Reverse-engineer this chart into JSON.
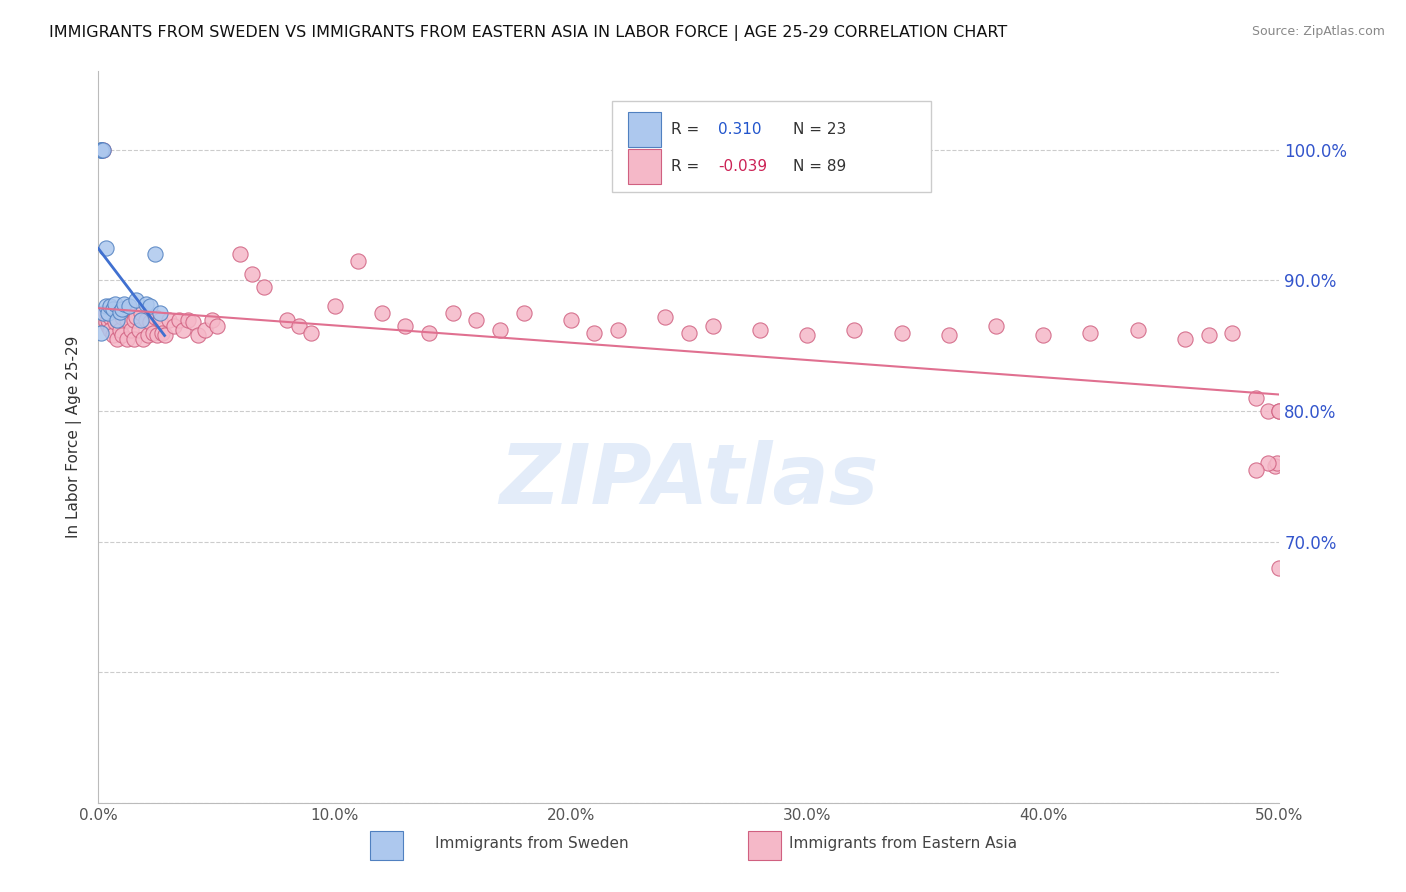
{
  "title": "IMMIGRANTS FROM SWEDEN VS IMMIGRANTS FROM EASTERN ASIA IN LABOR FORCE | AGE 25-29 CORRELATION CHART",
  "source": "Source: ZipAtlas.com",
  "ylabel": "In Labor Force | Age 25-29",
  "sweden_color": "#adc8ee",
  "eastern_asia_color": "#f5b8c8",
  "sweden_edge": "#5080c0",
  "eastern_asia_edge": "#d06080",
  "trend_blue": "#4070d0",
  "trend_pink": "#e07090",
  "legend_label_sweden": "Immigrants from Sweden",
  "legend_label_eastern_asia": "Immigrants from Eastern Asia",
  "watermark": "ZIPAtlas",
  "xlim": [
    0.0,
    0.5
  ],
  "ylim": [
    0.5,
    1.06
  ],
  "sweden_x": [
    0.001,
    0.001,
    0.001,
    0.001,
    0.002,
    0.002,
    0.003,
    0.003,
    0.004,
    0.005,
    0.006,
    0.007,
    0.008,
    0.009,
    0.01,
    0.011,
    0.013,
    0.016,
    0.018,
    0.02,
    0.022,
    0.024,
    0.026
  ],
  "sweden_y": [
    1.0,
    1.0,
    1.0,
    0.86,
    1.0,
    0.875,
    0.925,
    0.88,
    0.875,
    0.88,
    0.878,
    0.882,
    0.87,
    0.876,
    0.878,
    0.882,
    0.88,
    0.885,
    0.87,
    0.882,
    0.88,
    0.92,
    0.875
  ],
  "ea_x": [
    0.002,
    0.003,
    0.003,
    0.004,
    0.004,
    0.005,
    0.005,
    0.006,
    0.006,
    0.007,
    0.007,
    0.008,
    0.008,
    0.009,
    0.009,
    0.01,
    0.01,
    0.011,
    0.012,
    0.012,
    0.013,
    0.014,
    0.015,
    0.015,
    0.016,
    0.017,
    0.018,
    0.019,
    0.02,
    0.021,
    0.022,
    0.023,
    0.024,
    0.025,
    0.026,
    0.027,
    0.028,
    0.03,
    0.032,
    0.034,
    0.036,
    0.038,
    0.04,
    0.042,
    0.045,
    0.048,
    0.05,
    0.06,
    0.065,
    0.07,
    0.08,
    0.085,
    0.09,
    0.1,
    0.11,
    0.12,
    0.13,
    0.14,
    0.15,
    0.16,
    0.17,
    0.18,
    0.2,
    0.21,
    0.22,
    0.24,
    0.25,
    0.26,
    0.28,
    0.3,
    0.32,
    0.34,
    0.36,
    0.38,
    0.4,
    0.42,
    0.44,
    0.46,
    0.47,
    0.48,
    0.49,
    0.495,
    0.498,
    0.499,
    0.5,
    0.5,
    0.495,
    0.49,
    0.5
  ],
  "ea_y": [
    1.0,
    0.875,
    0.868,
    0.865,
    0.87,
    0.872,
    0.862,
    0.875,
    0.858,
    0.868,
    0.878,
    0.87,
    0.855,
    0.878,
    0.862,
    0.872,
    0.858,
    0.878,
    0.87,
    0.855,
    0.878,
    0.862,
    0.87,
    0.855,
    0.872,
    0.862,
    0.875,
    0.855,
    0.87,
    0.858,
    0.868,
    0.86,
    0.872,
    0.858,
    0.87,
    0.86,
    0.858,
    0.87,
    0.865,
    0.87,
    0.862,
    0.87,
    0.868,
    0.858,
    0.862,
    0.87,
    0.865,
    0.92,
    0.905,
    0.895,
    0.87,
    0.865,
    0.86,
    0.88,
    0.915,
    0.875,
    0.865,
    0.86,
    0.875,
    0.87,
    0.862,
    0.875,
    0.87,
    0.86,
    0.862,
    0.872,
    0.86,
    0.865,
    0.862,
    0.858,
    0.862,
    0.86,
    0.858,
    0.865,
    0.858,
    0.86,
    0.862,
    0.855,
    0.858,
    0.86,
    0.81,
    0.8,
    0.758,
    0.76,
    0.8,
    0.68,
    0.76,
    0.755,
    0.8
  ]
}
